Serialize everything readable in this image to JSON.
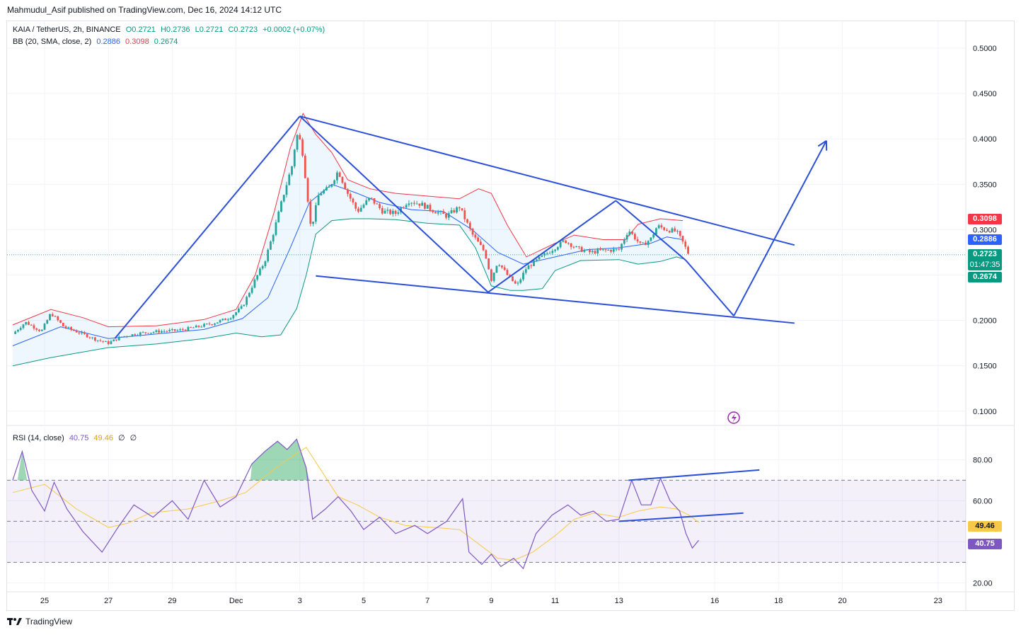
{
  "publisher_line": "Mahmudul_Asif published on TradingView.com, Dec 16, 2024 14:12 UTC",
  "legend": {
    "symbol": "KAIA / TetherUS, 2h, BINANCE",
    "o": "O0.2721",
    "h": "H0.2736",
    "l": "L0.2721",
    "c": "C0.2723",
    "change": "+0.0002 (+0.07%)",
    "bb_label": "BB (20, SMA, close, 2)",
    "bb_basis": "0.2886",
    "bb_upper": "0.3098",
    "bb_lower": "0.2674",
    "rsi_label": "RSI (14, close)",
    "rsi_value": "40.75",
    "rsi_ma": "49.46",
    "rsi_x1": "∅",
    "rsi_x2": "∅"
  },
  "price_tags": {
    "upper": "0.3098",
    "basis": "0.2886",
    "last": "0.2723",
    "countdown": "01:47:35",
    "lower": "0.2674",
    "rsi_ma": "49.46",
    "rsi": "40.75"
  },
  "footer_brand": "TradingView",
  "colors": {
    "up": "#26a69a",
    "down": "#ef5350",
    "bb_upper": "#f23645",
    "bb_lower": "#089981",
    "bb_basis": "#2962ff",
    "drawing": "#2b4fd8",
    "rsi": "#7e57c2",
    "rsi_ma": "#f7c948"
  },
  "chart_data": [
    {
      "type": "candlestick",
      "title": "KAIA / TetherUS, 2h, BINANCE",
      "x_ticks": [
        "25",
        "27",
        "29",
        "Dec",
        "3",
        "5",
        "7",
        "9",
        "11",
        "13",
        "16",
        "18",
        "20",
        "23"
      ],
      "y_ticks": [
        "0.5000",
        "0.4500",
        "0.4000",
        "0.3500",
        "0.3000",
        "0.2500",
        "0.2000",
        "0.1500",
        "0.1000"
      ],
      "ylim": [
        0.085,
        0.525
      ],
      "grid": true,
      "price_series": [
        {
          "d": 0,
          "p": 0.185
        },
        {
          "d": 0.4,
          "p": 0.198
        },
        {
          "d": 0.9,
          "p": 0.188
        },
        {
          "d": 1.2,
          "p": 0.208
        },
        {
          "d": 1.6,
          "p": 0.193
        },
        {
          "d": 2.2,
          "p": 0.185
        },
        {
          "d": 2.6,
          "p": 0.179
        },
        {
          "d": 3.0,
          "p": 0.175
        },
        {
          "d": 3.4,
          "p": 0.182
        },
        {
          "d": 4.0,
          "p": 0.186
        },
        {
          "d": 4.6,
          "p": 0.188
        },
        {
          "d": 5.2,
          "p": 0.189
        },
        {
          "d": 5.8,
          "p": 0.193
        },
        {
          "d": 6.3,
          "p": 0.197
        },
        {
          "d": 6.8,
          "p": 0.203
        },
        {
          "d": 7.2,
          "p": 0.215
        },
        {
          "d": 7.6,
          "p": 0.245
        },
        {
          "d": 7.9,
          "p": 0.265
        },
        {
          "d": 8.2,
          "p": 0.3
        },
        {
          "d": 8.5,
          "p": 0.34
        },
        {
          "d": 8.75,
          "p": 0.37
        },
        {
          "d": 8.9,
          "p": 0.405
        },
        {
          "d": 9.05,
          "p": 0.395
        },
        {
          "d": 9.2,
          "p": 0.35
        },
        {
          "d": 9.35,
          "p": 0.3
        },
        {
          "d": 9.6,
          "p": 0.34
        },
        {
          "d": 9.9,
          "p": 0.345
        },
        {
          "d": 10.2,
          "p": 0.365
        },
        {
          "d": 10.5,
          "p": 0.34
        },
        {
          "d": 10.8,
          "p": 0.32
        },
        {
          "d": 11.2,
          "p": 0.335
        },
        {
          "d": 11.6,
          "p": 0.32
        },
        {
          "d": 12.0,
          "p": 0.318
        },
        {
          "d": 12.4,
          "p": 0.332
        },
        {
          "d": 12.8,
          "p": 0.328
        },
        {
          "d": 13.2,
          "p": 0.321
        },
        {
          "d": 13.6,
          "p": 0.315
        },
        {
          "d": 14.0,
          "p": 0.325
        },
        {
          "d": 14.4,
          "p": 0.295
        },
        {
          "d": 14.8,
          "p": 0.275
        },
        {
          "d": 15.0,
          "p": 0.245
        },
        {
          "d": 15.2,
          "p": 0.265
        },
        {
          "d": 15.5,
          "p": 0.25
        },
        {
          "d": 15.8,
          "p": 0.238
        },
        {
          "d": 16.1,
          "p": 0.258
        },
        {
          "d": 16.5,
          "p": 0.268
        },
        {
          "d": 16.9,
          "p": 0.278
        },
        {
          "d": 17.3,
          "p": 0.288
        },
        {
          "d": 17.7,
          "p": 0.279
        },
        {
          "d": 18.1,
          "p": 0.275
        },
        {
          "d": 18.5,
          "p": 0.277
        },
        {
          "d": 19.0,
          "p": 0.278
        },
        {
          "d": 19.3,
          "p": 0.3
        },
        {
          "d": 19.7,
          "p": 0.282
        },
        {
          "d": 20.0,
          "p": 0.29
        },
        {
          "d": 20.2,
          "p": 0.304
        },
        {
          "d": 20.5,
          "p": 0.3
        },
        {
          "d": 20.8,
          "p": 0.298
        },
        {
          "d": 21.0,
          "p": 0.286
        },
        {
          "d": 21.2,
          "p": 0.272
        }
      ],
      "bb_upper_series": [
        {
          "d": 0,
          "p": 0.195
        },
        {
          "d": 1.2,
          "p": 0.212
        },
        {
          "d": 2.2,
          "p": 0.203
        },
        {
          "d": 3.0,
          "p": 0.193
        },
        {
          "d": 4.5,
          "p": 0.194
        },
        {
          "d": 6.0,
          "p": 0.201
        },
        {
          "d": 7.0,
          "p": 0.212
        },
        {
          "d": 7.6,
          "p": 0.25
        },
        {
          "d": 8.2,
          "p": 0.32
        },
        {
          "d": 8.7,
          "p": 0.39
        },
        {
          "d": 9.1,
          "p": 0.428
        },
        {
          "d": 9.5,
          "p": 0.405
        },
        {
          "d": 10.0,
          "p": 0.385
        },
        {
          "d": 10.5,
          "p": 0.355
        },
        {
          "d": 11.2,
          "p": 0.345
        },
        {
          "d": 12.0,
          "p": 0.34
        },
        {
          "d": 13.0,
          "p": 0.337
        },
        {
          "d": 14.0,
          "p": 0.334
        },
        {
          "d": 14.6,
          "p": 0.345
        },
        {
          "d": 15.0,
          "p": 0.34
        },
        {
          "d": 15.5,
          "p": 0.305
        },
        {
          "d": 16.1,
          "p": 0.27
        },
        {
          "d": 17.0,
          "p": 0.285
        },
        {
          "d": 17.6,
          "p": 0.294
        },
        {
          "d": 18.5,
          "p": 0.289
        },
        {
          "d": 19.2,
          "p": 0.289
        },
        {
          "d": 19.6,
          "p": 0.306
        },
        {
          "d": 20.3,
          "p": 0.312
        },
        {
          "d": 21.0,
          "p": 0.31
        }
      ],
      "bb_basis_series": [
        {
          "d": 0,
          "p": 0.172
        },
        {
          "d": 1.5,
          "p": 0.193
        },
        {
          "d": 3.0,
          "p": 0.18
        },
        {
          "d": 4.5,
          "p": 0.185
        },
        {
          "d": 6.0,
          "p": 0.19
        },
        {
          "d": 7.2,
          "p": 0.202
        },
        {
          "d": 8.0,
          "p": 0.225
        },
        {
          "d": 8.7,
          "p": 0.28
        },
        {
          "d": 9.3,
          "p": 0.33
        },
        {
          "d": 10.0,
          "p": 0.35
        },
        {
          "d": 10.8,
          "p": 0.34
        },
        {
          "d": 11.5,
          "p": 0.33
        },
        {
          "d": 12.5,
          "p": 0.322
        },
        {
          "d": 13.5,
          "p": 0.32
        },
        {
          "d": 14.4,
          "p": 0.3
        },
        {
          "d": 15.2,
          "p": 0.275
        },
        {
          "d": 16.0,
          "p": 0.262
        },
        {
          "d": 17.0,
          "p": 0.27
        },
        {
          "d": 18.0,
          "p": 0.278
        },
        {
          "d": 19.0,
          "p": 0.28
        },
        {
          "d": 20.0,
          "p": 0.285
        },
        {
          "d": 20.5,
          "p": 0.292
        },
        {
          "d": 21.0,
          "p": 0.289
        }
      ],
      "bb_lower_series": [
        {
          "d": 0,
          "p": 0.15
        },
        {
          "d": 1.2,
          "p": 0.159
        },
        {
          "d": 3.0,
          "p": 0.17
        },
        {
          "d": 4.5,
          "p": 0.174
        },
        {
          "d": 6.0,
          "p": 0.18
        },
        {
          "d": 7.0,
          "p": 0.186
        },
        {
          "d": 7.8,
          "p": 0.182
        },
        {
          "d": 8.4,
          "p": 0.184
        },
        {
          "d": 8.9,
          "p": 0.213
        },
        {
          "d": 9.2,
          "p": 0.25
        },
        {
          "d": 9.5,
          "p": 0.295
        },
        {
          "d": 10.0,
          "p": 0.31
        },
        {
          "d": 10.6,
          "p": 0.312
        },
        {
          "d": 11.2,
          "p": 0.312
        },
        {
          "d": 12.0,
          "p": 0.311
        },
        {
          "d": 13.0,
          "p": 0.307
        },
        {
          "d": 14.0,
          "p": 0.305
        },
        {
          "d": 14.5,
          "p": 0.28
        },
        {
          "d": 15.0,
          "p": 0.238
        },
        {
          "d": 15.6,
          "p": 0.233
        },
        {
          "d": 16.0,
          "p": 0.233
        },
        {
          "d": 16.6,
          "p": 0.235
        },
        {
          "d": 17.0,
          "p": 0.255
        },
        {
          "d": 17.8,
          "p": 0.266
        },
        {
          "d": 19.0,
          "p": 0.267
        },
        {
          "d": 19.6,
          "p": 0.262
        },
        {
          "d": 20.3,
          "p": 0.265
        },
        {
          "d": 20.8,
          "p": 0.27
        },
        {
          "d": 21.0,
          "p": 0.268
        }
      ],
      "drawings": [
        {
          "d1": 3.2,
          "p1": 0.18,
          "d2": 9.0,
          "p2": 0.425
        },
        {
          "d1": 9.0,
          "p1": 0.425,
          "d2": 14.9,
          "p2": 0.231
        },
        {
          "d1": 14.9,
          "p1": 0.231,
          "d2": 18.9,
          "p2": 0.332
        },
        {
          "d1": 18.9,
          "p1": 0.332,
          "d2": 21.1,
          "p2": 0.266
        },
        {
          "d1": 21.1,
          "p1": 0.266,
          "d2": 22.6,
          "p2": 0.205
        },
        {
          "d1": 22.6,
          "p1": 0.205,
          "d2": 25.5,
          "p2": 0.398
        },
        {
          "d1": 9.0,
          "p1": 0.425,
          "d2": 24.5,
          "p2": 0.283
        },
        {
          "d1": 9.5,
          "p1": 0.249,
          "d2": 24.5,
          "p2": 0.197
        }
      ]
    },
    {
      "type": "line",
      "title": "RSI (14, close)",
      "y_ticks": [
        "80.00",
        "60.00",
        "40.00",
        "20.00"
      ],
      "ylim": [
        16,
        96
      ],
      "band": [
        30,
        70
      ],
      "midline": 50,
      "rsi_series": [
        {
          "d": 0,
          "v": 70
        },
        {
          "d": 0.3,
          "v": 84
        },
        {
          "d": 0.6,
          "v": 65
        },
        {
          "d": 1.0,
          "v": 55
        },
        {
          "d": 1.3,
          "v": 69
        },
        {
          "d": 1.7,
          "v": 56
        },
        {
          "d": 2.2,
          "v": 45
        },
        {
          "d": 2.8,
          "v": 35
        },
        {
          "d": 3.3,
          "v": 47
        },
        {
          "d": 3.8,
          "v": 58
        },
        {
          "d": 4.4,
          "v": 52
        },
        {
          "d": 5.0,
          "v": 60
        },
        {
          "d": 5.5,
          "v": 51
        },
        {
          "d": 6.0,
          "v": 70
        },
        {
          "d": 6.5,
          "v": 57
        },
        {
          "d": 7.0,
          "v": 62
        },
        {
          "d": 7.5,
          "v": 78
        },
        {
          "d": 7.9,
          "v": 84
        },
        {
          "d": 8.3,
          "v": 89
        },
        {
          "d": 8.6,
          "v": 85
        },
        {
          "d": 8.9,
          "v": 90
        },
        {
          "d": 9.2,
          "v": 76
        },
        {
          "d": 9.4,
          "v": 51
        },
        {
          "d": 9.8,
          "v": 56
        },
        {
          "d": 10.2,
          "v": 62
        },
        {
          "d": 10.6,
          "v": 55
        },
        {
          "d": 11.0,
          "v": 46
        },
        {
          "d": 11.5,
          "v": 52
        },
        {
          "d": 12.0,
          "v": 44
        },
        {
          "d": 12.6,
          "v": 48
        },
        {
          "d": 13.0,
          "v": 44
        },
        {
          "d": 13.6,
          "v": 50
        },
        {
          "d": 14.1,
          "v": 61
        },
        {
          "d": 14.3,
          "v": 35
        },
        {
          "d": 14.7,
          "v": 29
        },
        {
          "d": 15.0,
          "v": 34
        },
        {
          "d": 15.3,
          "v": 28
        },
        {
          "d": 15.7,
          "v": 32
        },
        {
          "d": 16.0,
          "v": 27
        },
        {
          "d": 16.4,
          "v": 44
        },
        {
          "d": 16.9,
          "v": 53
        },
        {
          "d": 17.4,
          "v": 58
        },
        {
          "d": 17.8,
          "v": 53
        },
        {
          "d": 18.2,
          "v": 55
        },
        {
          "d": 18.6,
          "v": 50
        },
        {
          "d": 19.0,
          "v": 51
        },
        {
          "d": 19.4,
          "v": 70
        },
        {
          "d": 19.7,
          "v": 58
        },
        {
          "d": 20.0,
          "v": 58
        },
        {
          "d": 20.3,
          "v": 71
        },
        {
          "d": 20.6,
          "v": 60
        },
        {
          "d": 20.9,
          "v": 55
        },
        {
          "d": 21.1,
          "v": 44
        },
        {
          "d": 21.3,
          "v": 37
        },
        {
          "d": 21.5,
          "v": 40.75
        }
      ],
      "rsi_ma_series": [
        {
          "d": 0,
          "v": 64
        },
        {
          "d": 1.0,
          "v": 68
        },
        {
          "d": 2.0,
          "v": 56
        },
        {
          "d": 3.0,
          "v": 47
        },
        {
          "d": 3.6,
          "v": 49
        },
        {
          "d": 4.3,
          "v": 54
        },
        {
          "d": 5.5,
          "v": 56
        },
        {
          "d": 6.5,
          "v": 60
        },
        {
          "d": 7.3,
          "v": 64
        },
        {
          "d": 8.0,
          "v": 73
        },
        {
          "d": 8.6,
          "v": 80
        },
        {
          "d": 9.2,
          "v": 86
        },
        {
          "d": 9.7,
          "v": 74
        },
        {
          "d": 10.2,
          "v": 62
        },
        {
          "d": 10.8,
          "v": 58
        },
        {
          "d": 11.5,
          "v": 52
        },
        {
          "d": 12.3,
          "v": 48
        },
        {
          "d": 13.2,
          "v": 47
        },
        {
          "d": 14.0,
          "v": 46
        },
        {
          "d": 14.6,
          "v": 39
        },
        {
          "d": 15.2,
          "v": 32
        },
        {
          "d": 15.7,
          "v": 31
        },
        {
          "d": 16.3,
          "v": 35
        },
        {
          "d": 17.0,
          "v": 43
        },
        {
          "d": 17.6,
          "v": 51
        },
        {
          "d": 18.2,
          "v": 54
        },
        {
          "d": 19.0,
          "v": 52
        },
        {
          "d": 19.6,
          "v": 55
        },
        {
          "d": 20.3,
          "v": 57
        },
        {
          "d": 20.8,
          "v": 56
        },
        {
          "d": 21.2,
          "v": 53
        },
        {
          "d": 21.5,
          "v": 49.46
        }
      ],
      "drawings": [
        {
          "d1": 19.3,
          "v1": 70,
          "d2": 23.4,
          "v2": 75
        },
        {
          "d1": 19.0,
          "v1": 50,
          "d2": 22.9,
          "v2": 54
        }
      ]
    }
  ]
}
